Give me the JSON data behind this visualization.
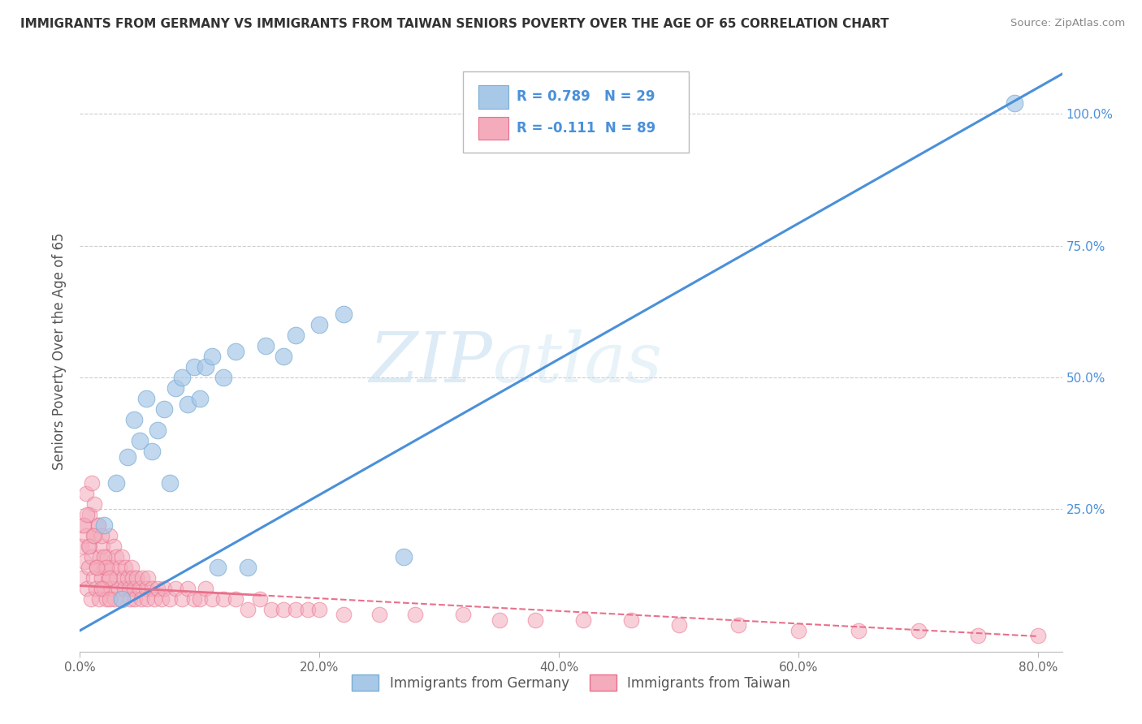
{
  "title": "IMMIGRANTS FROM GERMANY VS IMMIGRANTS FROM TAIWAN SENIORS POVERTY OVER THE AGE OF 65 CORRELATION CHART",
  "source": "Source: ZipAtlas.com",
  "ylabel": "Seniors Poverty Over the Age of 65",
  "xlim": [
    0.0,
    0.82
  ],
  "ylim": [
    -0.02,
    1.12
  ],
  "xtick_labels": [
    "0.0%",
    "",
    "20.0%",
    "",
    "40.0%",
    "",
    "60.0%",
    "",
    "80.0%"
  ],
  "xtick_values": [
    0.0,
    0.1,
    0.2,
    0.3,
    0.4,
    0.5,
    0.6,
    0.7,
    0.8
  ],
  "ytick_labels": [
    "25.0%",
    "50.0%",
    "75.0%",
    "100.0%"
  ],
  "ytick_values": [
    0.25,
    0.5,
    0.75,
    1.0
  ],
  "germany_color": "#A8C8E8",
  "taiwan_color": "#F4ABBC",
  "germany_edge_color": "#7AADD4",
  "taiwan_edge_color": "#E8708A",
  "germany_R": 0.789,
  "germany_N": 29,
  "taiwan_R": -0.111,
  "taiwan_N": 89,
  "legend_label_germany": "Immigrants from Germany",
  "legend_label_taiwan": "Immigrants from Taiwan",
  "watermark_zip": "ZIP",
  "watermark_atlas": "atlas",
  "trend_germany_color": "#4A90D9",
  "trend_taiwan_solid_color": "#E8708A",
  "trend_taiwan_dash_color": "#E8708A",
  "germany_x": [
    0.02,
    0.03,
    0.035,
    0.04,
    0.045,
    0.05,
    0.055,
    0.06,
    0.065,
    0.07,
    0.075,
    0.08,
    0.085,
    0.09,
    0.095,
    0.1,
    0.105,
    0.11,
    0.115,
    0.12,
    0.13,
    0.14,
    0.155,
    0.17,
    0.18,
    0.2,
    0.22,
    0.27,
    0.78
  ],
  "germany_y": [
    0.22,
    0.3,
    0.08,
    0.35,
    0.42,
    0.38,
    0.46,
    0.36,
    0.4,
    0.44,
    0.3,
    0.48,
    0.5,
    0.45,
    0.52,
    0.46,
    0.52,
    0.54,
    0.14,
    0.5,
    0.55,
    0.14,
    0.56,
    0.54,
    0.58,
    0.6,
    0.62,
    0.16,
    1.02
  ],
  "taiwan_x": [
    0.001,
    0.002,
    0.003,
    0.004,
    0.005,
    0.006,
    0.007,
    0.008,
    0.009,
    0.01,
    0.011,
    0.012,
    0.013,
    0.014,
    0.015,
    0.016,
    0.017,
    0.018,
    0.019,
    0.02,
    0.021,
    0.022,
    0.023,
    0.024,
    0.025,
    0.026,
    0.027,
    0.028,
    0.029,
    0.03,
    0.031,
    0.032,
    0.033,
    0.034,
    0.035,
    0.036,
    0.037,
    0.038,
    0.04,
    0.041,
    0.042,
    0.043,
    0.044,
    0.045,
    0.046,
    0.047,
    0.05,
    0.051,
    0.052,
    0.055,
    0.056,
    0.057,
    0.06,
    0.062,
    0.065,
    0.068,
    0.07,
    0.075,
    0.08,
    0.085,
    0.09,
    0.095,
    0.1,
    0.105,
    0.11,
    0.12,
    0.13,
    0.14,
    0.15,
    0.16,
    0.17,
    0.18,
    0.19,
    0.2,
    0.22,
    0.25,
    0.28,
    0.32,
    0.35,
    0.38,
    0.42,
    0.46,
    0.5,
    0.55,
    0.6,
    0.65,
    0.7,
    0.75,
    0.8
  ],
  "taiwan_y": [
    0.18,
    0.12,
    0.22,
    0.15,
    0.2,
    0.1,
    0.14,
    0.18,
    0.08,
    0.16,
    0.12,
    0.2,
    0.1,
    0.14,
    0.22,
    0.08,
    0.16,
    0.12,
    0.18,
    0.1,
    0.14,
    0.08,
    0.16,
    0.12,
    0.2,
    0.1,
    0.14,
    0.18,
    0.08,
    0.16,
    0.12,
    0.1,
    0.14,
    0.08,
    0.16,
    0.12,
    0.1,
    0.14,
    0.12,
    0.1,
    0.08,
    0.14,
    0.12,
    0.1,
    0.08,
    0.12,
    0.1,
    0.08,
    0.12,
    0.1,
    0.08,
    0.12,
    0.1,
    0.08,
    0.1,
    0.08,
    0.1,
    0.08,
    0.1,
    0.08,
    0.1,
    0.08,
    0.08,
    0.1,
    0.08,
    0.08,
    0.08,
    0.06,
    0.08,
    0.06,
    0.06,
    0.06,
    0.06,
    0.06,
    0.05,
    0.05,
    0.05,
    0.05,
    0.04,
    0.04,
    0.04,
    0.04,
    0.03,
    0.03,
    0.02,
    0.02,
    0.02,
    0.01,
    0.01
  ],
  "taiwan_extra_x": [
    0.005,
    0.008,
    0.01,
    0.012,
    0.015,
    0.018,
    0.02,
    0.022,
    0.025,
    0.003,
    0.007,
    0.014,
    0.018,
    0.025,
    0.006,
    0.011
  ],
  "taiwan_extra_y": [
    0.28,
    0.24,
    0.3,
    0.26,
    0.22,
    0.2,
    0.16,
    0.14,
    0.12,
    0.22,
    0.18,
    0.14,
    0.1,
    0.08,
    0.24,
    0.2
  ]
}
